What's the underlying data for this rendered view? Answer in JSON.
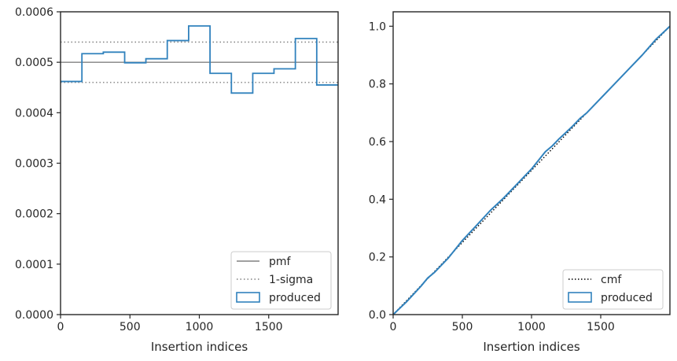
{
  "chart_data": [
    {
      "type": "histogram-step",
      "xlabel": "Insertion indices",
      "ylabel": "",
      "xlim": [
        0,
        2000
      ],
      "ylim": [
        0,
        0.0006
      ],
      "xticks": [
        0,
        500,
        1000,
        1500
      ],
      "xtick_labels": [
        "0",
        "500",
        "1000",
        "1500"
      ],
      "yticks": [
        0,
        0.0001,
        0.0002,
        0.0003,
        0.0004,
        0.0005,
        0.0006
      ],
      "ytick_labels": [
        "0.0000",
        "0.0001",
        "0.0002",
        "0.0003",
        "0.0004",
        "0.0005",
        "0.0006"
      ],
      "grid": false,
      "legend_position": "bottom-right",
      "lines": {
        "pmf": 0.0005,
        "sigma_low": 0.00046,
        "sigma_high": 0.00054
      },
      "bin_edges": [
        0,
        154,
        308,
        462,
        615,
        769,
        923,
        1077,
        1231,
        1385,
        1538,
        1692,
        1846,
        2000
      ],
      "bin_values": [
        0.000462,
        0.000517,
        0.00052,
        0.000499,
        0.000507,
        0.000543,
        0.000572,
        0.000478,
        0.000439,
        0.000478,
        0.000487,
        0.000547,
        0.000455
      ],
      "series": [
        {
          "name": "pmf",
          "style": "solid",
          "color": "#808080"
        },
        {
          "name": "1-sigma",
          "style": "dotted",
          "color": "#808080"
        },
        {
          "name": "produced",
          "style": "step",
          "color": "#3182bd"
        }
      ]
    },
    {
      "type": "line",
      "xlabel": "Insertion indices",
      "ylabel": "",
      "xlim": [
        0,
        2000
      ],
      "ylim": [
        0,
        1.05
      ],
      "xticks": [
        0,
        500,
        1000,
        1500
      ],
      "xtick_labels": [
        "0",
        "500",
        "1000",
        "1500"
      ],
      "yticks": [
        0,
        0.2,
        0.4,
        0.6,
        0.8,
        1.0
      ],
      "ytick_labels": [
        "0.0",
        "0.2",
        "0.4",
        "0.6",
        "0.8",
        "1.0"
      ],
      "grid": false,
      "legend_position": "bottom-right",
      "cmf": {
        "x": [
          0,
          2000
        ],
        "y": [
          0,
          1.0
        ]
      },
      "produced": {
        "x": [
          0,
          100,
          200,
          250,
          300,
          400,
          500,
          600,
          700,
          800,
          900,
          1000,
          1050,
          1100,
          1150,
          1200,
          1250,
          1300,
          1350,
          1400,
          1500,
          1600,
          1700,
          1800,
          1900,
          2000
        ],
        "y": [
          0,
          0.046,
          0.098,
          0.127,
          0.147,
          0.197,
          0.257,
          0.308,
          0.36,
          0.405,
          0.455,
          0.505,
          0.535,
          0.565,
          0.585,
          0.61,
          0.632,
          0.655,
          0.68,
          0.7,
          0.75,
          0.8,
          0.85,
          0.9,
          0.955,
          1.0
        ]
      },
      "series": [
        {
          "name": "cmf",
          "style": "dotted",
          "color": "#000000"
        },
        {
          "name": "produced",
          "style": "line",
          "color": "#3182bd"
        }
      ]
    }
  ]
}
